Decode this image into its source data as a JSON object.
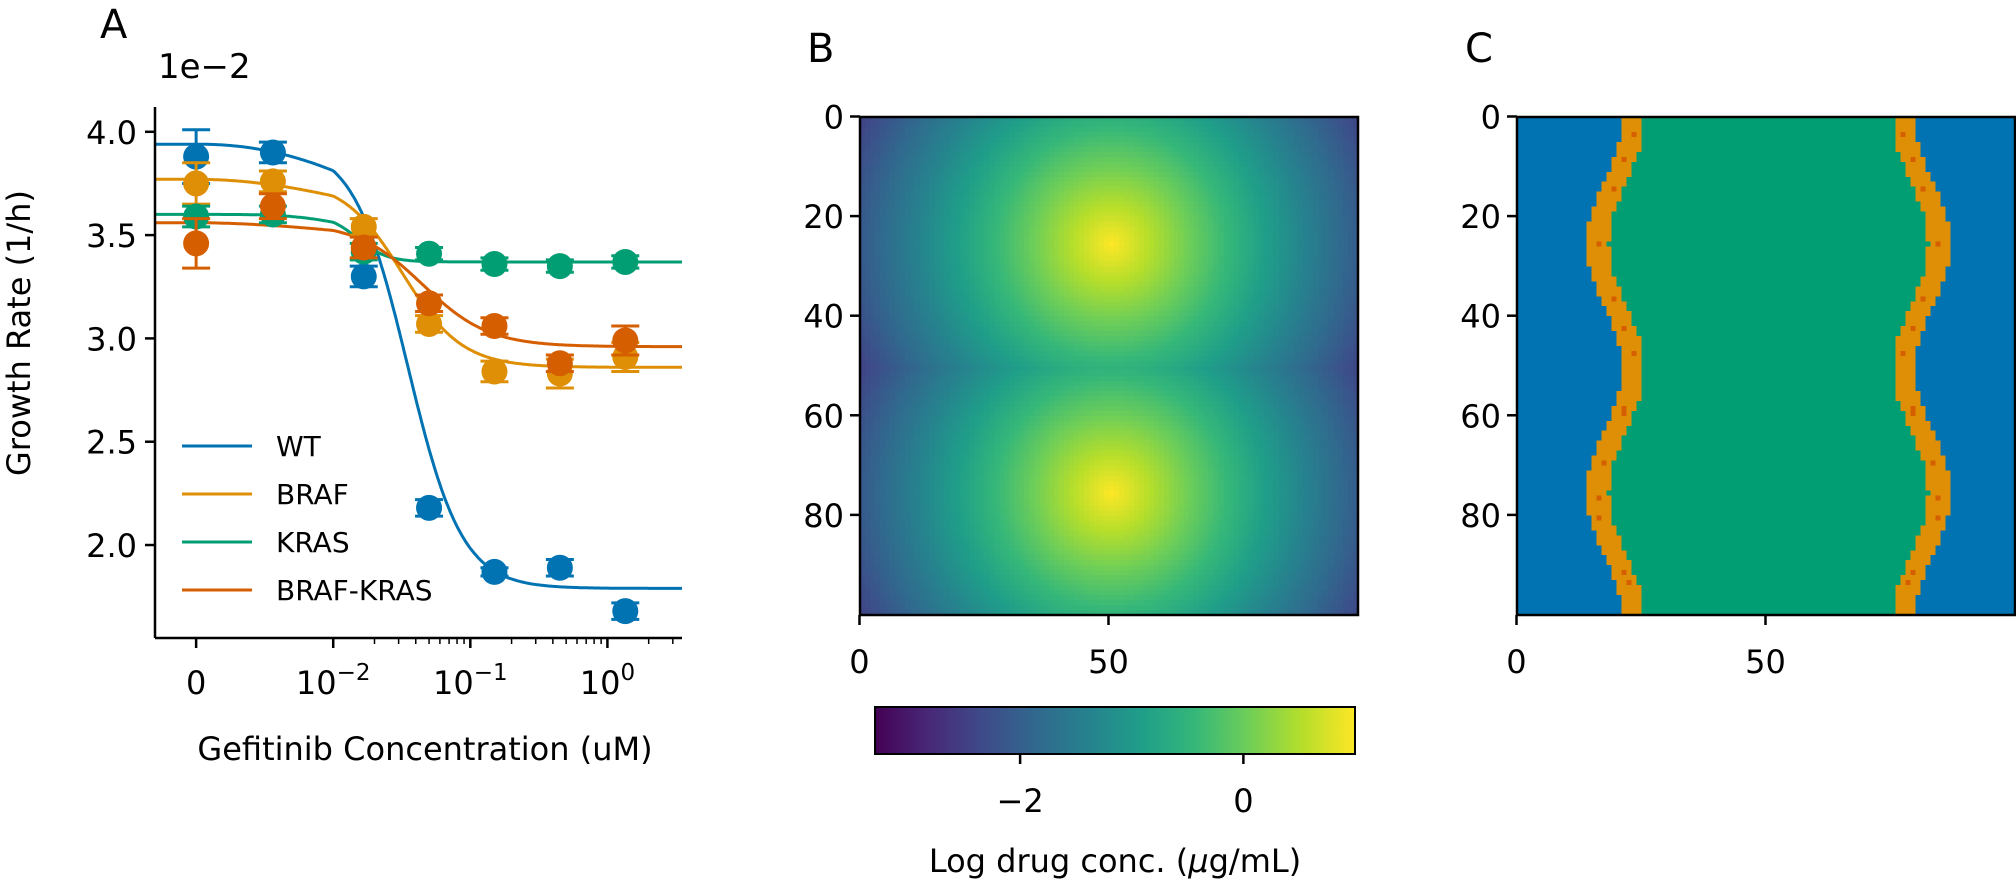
{
  "panel_labels": {
    "a": "A",
    "b": "B",
    "c": "C"
  },
  "chart_data": [
    {
      "type": "scatter",
      "panel": "A",
      "xlabel": "Gefitinib Concentration (uM)",
      "ylabel": "Growth Rate (1/h)",
      "y_scale_label": "1e−2",
      "x_scale": "symlog",
      "xlim": [
        -0.003,
        3.5
      ],
      "ylim": [
        1.55,
        4.12
      ],
      "x_ticks": [
        {
          "v": 0,
          "label": "0"
        },
        {
          "v": 0.01,
          "label": "10",
          "exp": "−2"
        },
        {
          "v": 0.1,
          "label": "10",
          "exp": "−1"
        },
        {
          "v": 1,
          "label": "10",
          "exp": "0"
        }
      ],
      "y_ticks": [
        {
          "v": 2.0,
          "label": "2.0"
        },
        {
          "v": 2.5,
          "label": "2.5"
        },
        {
          "v": 3.0,
          "label": "3.0"
        },
        {
          "v": 3.5,
          "label": "3.5"
        },
        {
          "v": 4.0,
          "label": "4.0"
        }
      ],
      "x": [
        0,
        0.0056,
        0.0167,
        0.05,
        0.15,
        0.45,
        1.35
      ],
      "legend": "lower-left",
      "series": [
        {
          "name": "WT",
          "color": "#0173b2",
          "y": [
            3.88,
            3.9,
            3.3,
            2.18,
            1.87,
            1.89,
            1.68
          ],
          "err": [
            0.13,
            0.05,
            0.05,
            0.04,
            0.02,
            0.04,
            0.04
          ],
          "fit": {
            "top": 3.94,
            "bottom": 1.79,
            "ec50": 0.035,
            "hill": 2.2
          }
        },
        {
          "name": "BRAF",
          "color": "#de8f05",
          "y": [
            3.75,
            3.76,
            3.54,
            3.07,
            2.84,
            2.83,
            2.91
          ],
          "err": [
            0.1,
            0.05,
            0.04,
            0.04,
            0.05,
            0.07,
            0.07
          ],
          "fit": {
            "top": 3.77,
            "bottom": 2.86,
            "ec50": 0.032,
            "hill": 2.0
          }
        },
        {
          "name": "KRAS",
          "color": "#029e73",
          "y": [
            3.59,
            3.6,
            3.42,
            3.41,
            3.36,
            3.35,
            3.37
          ],
          "err": [
            0.05,
            0.04,
            0.04,
            0.03,
            0.03,
            0.03,
            0.03
          ],
          "fit": {
            "top": 3.6,
            "bottom": 3.37,
            "ec50": 0.015,
            "hill": 4.0
          }
        },
        {
          "name": "BRAF-KRAS",
          "color": "#d55e00",
          "y": [
            3.46,
            3.64,
            3.44,
            3.17,
            3.06,
            2.88,
            2.99
          ],
          "err": [
            0.12,
            0.06,
            0.05,
            0.04,
            0.04,
            0.04,
            0.07
          ],
          "fit": {
            "top": 3.56,
            "bottom": 2.96,
            "ec50": 0.045,
            "hill": 1.8
          }
        }
      ]
    },
    {
      "type": "heatmap",
      "panel": "B",
      "colormap": "viridis",
      "grid": 100,
      "x_ticks": [
        {
          "v": 0,
          "label": "0"
        },
        {
          "v": 50,
          "label": "50"
        }
      ],
      "y_ticks": [
        {
          "v": 0,
          "label": "0"
        },
        {
          "v": 20,
          "label": "20"
        },
        {
          "v": 40,
          "label": "40"
        },
        {
          "v": 60,
          "label": "60"
        },
        {
          "v": 80,
          "label": "80"
        }
      ],
      "sources": [
        {
          "x": 50,
          "y": 25
        },
        {
          "x": 50,
          "y": 75
        }
      ],
      "value_range": [
        -3.3,
        1.0
      ],
      "colorbar": {
        "label_prefix": "Log drug conc. (",
        "label_mu": "μ",
        "label_suffix": "g/mL)",
        "range": [
          -3.3,
          1.0
        ],
        "ticks": [
          {
            "v": -2,
            "label": "−2"
          },
          {
            "v": 0,
            "label": "0"
          }
        ]
      }
    },
    {
      "type": "heatmap",
      "panel": "C",
      "grid": 100,
      "x_ticks": [
        {
          "v": 0,
          "label": "0"
        },
        {
          "v": 50,
          "label": "50"
        }
      ],
      "y_ticks": [
        {
          "v": 0,
          "label": "0"
        },
        {
          "v": 20,
          "label": "20"
        },
        {
          "v": 40,
          "label": "40"
        },
        {
          "v": 60,
          "label": "60"
        },
        {
          "v": 80,
          "label": "80"
        }
      ],
      "categories": [
        {
          "name": "WT",
          "color": "#0173b2"
        },
        {
          "name": "BRAF",
          "color": "#de8f05"
        },
        {
          "name": "KRAS",
          "color": "#029e73"
        },
        {
          "name": "BRAF-KRAS",
          "color": "#d55e00"
        }
      ]
    }
  ]
}
